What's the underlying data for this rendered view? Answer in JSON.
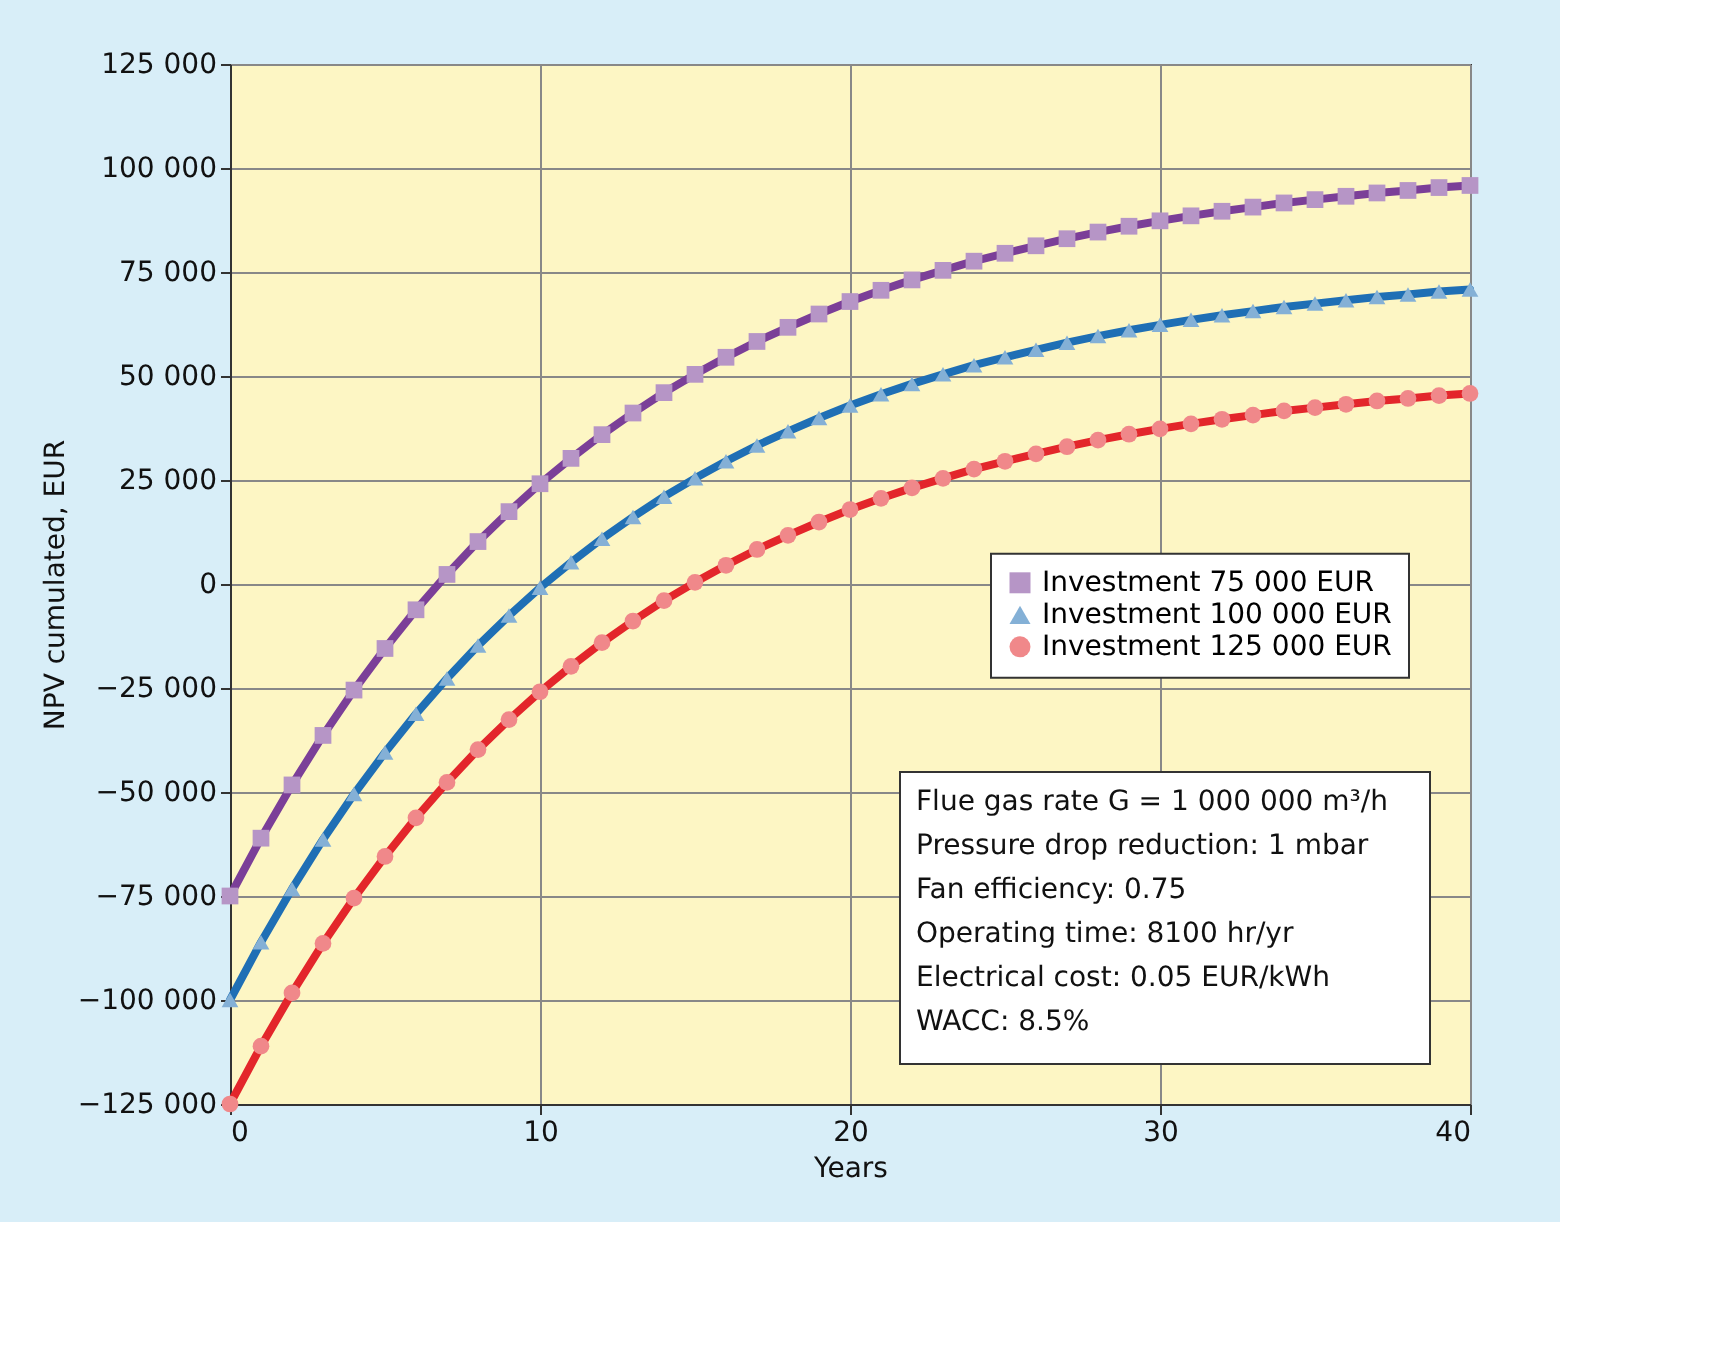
{
  "chart_data": {
    "type": "line",
    "xlabel": "Years",
    "ylabel": "NPV cumulated, EUR",
    "x": [
      0,
      1,
      2,
      3,
      4,
      5,
      6,
      7,
      8,
      9,
      10,
      11,
      12,
      13,
      14,
      15,
      16,
      17,
      18,
      19,
      20,
      21,
      22,
      23,
      24,
      25,
      26,
      27,
      28,
      29,
      30,
      31,
      32,
      33,
      34,
      35,
      36,
      37,
      38,
      39,
      40
    ],
    "series": [
      {
        "name": "Investment 75 000 EUR",
        "color": "#7b3f98",
        "marker": "square",
        "values": [
          -75000,
          -61100,
          -48300,
          -36400,
          -25500,
          -15500,
          -6200,
          2300,
          10200,
          17400,
          24100,
          30200,
          35900,
          41100,
          46000,
          50400,
          54500,
          58300,
          61700,
          64900,
          67900,
          70600,
          73100,
          75400,
          77600,
          79500,
          81300,
          83000,
          84600,
          86000,
          87300,
          88500,
          89600,
          90600,
          91600,
          92400,
          93200,
          94000,
          94600,
          95300,
          95800
        ]
      },
      {
        "name": "Investment 100 000 EUR",
        "color": "#1f6fb5",
        "marker": "triangle",
        "values": [
          -100000,
          -86100,
          -73300,
          -61400,
          -50500,
          -40500,
          -31200,
          -22700,
          -14800,
          -7600,
          -900,
          5200,
          10900,
          16100,
          21000,
          25400,
          29500,
          33300,
          36700,
          39900,
          42900,
          45600,
          48100,
          50400,
          52600,
          54500,
          56300,
          58000,
          59600,
          61000,
          62300,
          63500,
          64600,
          65600,
          66600,
          67400,
          68200,
          69000,
          69600,
          70300,
          70800
        ]
      },
      {
        "name": "Investment 125 000 EUR",
        "color": "#e3262b",
        "marker": "circle",
        "values": [
          -125000,
          -111100,
          -98300,
          -86400,
          -75500,
          -65500,
          -56200,
          -47700,
          -39800,
          -32600,
          -25900,
          -19800,
          -14100,
          -8900,
          -4000,
          400,
          4500,
          8300,
          11700,
          14900,
          17900,
          20600,
          23100,
          25400,
          27600,
          29500,
          31300,
          33000,
          34600,
          36000,
          37300,
          38500,
          39600,
          40600,
          41600,
          42400,
          43200,
          44000,
          44600,
          45300,
          45800
        ]
      }
    ],
    "xlim": [
      0,
      40
    ],
    "xticks": [
      0,
      10,
      20,
      30,
      40
    ],
    "ylim": [
      -125000,
      125000
    ],
    "yticks": [
      {
        "value": -125000,
        "label": "−125 000"
      },
      {
        "value": -100000,
        "label": "−100 000"
      },
      {
        "value": -75000,
        "label": "−75 000"
      },
      {
        "value": -50000,
        "label": "−50 000"
      },
      {
        "value": -25000,
        "label": "−25 000"
      },
      {
        "value": 0,
        "label": "0"
      },
      {
        "value": 25000,
        "label": "25 000"
      },
      {
        "value": 50000,
        "label": "50 000"
      },
      {
        "value": 75000,
        "label": "75 000"
      },
      {
        "value": 100000,
        "label": "100 000"
      },
      {
        "value": 125000,
        "label": "125 000"
      }
    ],
    "grid": true,
    "legend": "right",
    "line_style": "solid",
    "annotations": [
      "Flue gas rate G = 1 000 000 m³/h",
      "Pressure drop reduction: 1 mbar",
      "Fan efficiency: 0.75",
      "Operating time: 8100 hr/yr",
      "Electrical cost: 0.05 EUR/kWh",
      "WACC: 8.5%"
    ]
  }
}
